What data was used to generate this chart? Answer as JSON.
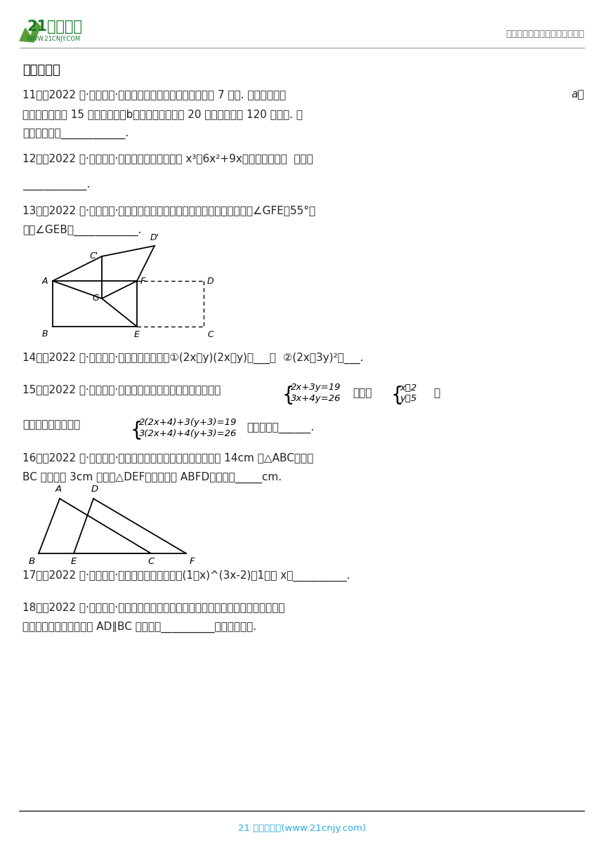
{
  "bg_color": "#ffffff",
  "header_line_color": "#aaaaaa",
  "footer_line_color": "#444444",
  "footer_text": "21 世纪教育网(www.21cnjy.com)",
  "footer_text_color": "#29aae1",
  "header_right_text": "中小学教育资源及组卷应用平台",
  "header_right_color": "#666666",
  "title": "二、填空题",
  "text_color": "#222222"
}
